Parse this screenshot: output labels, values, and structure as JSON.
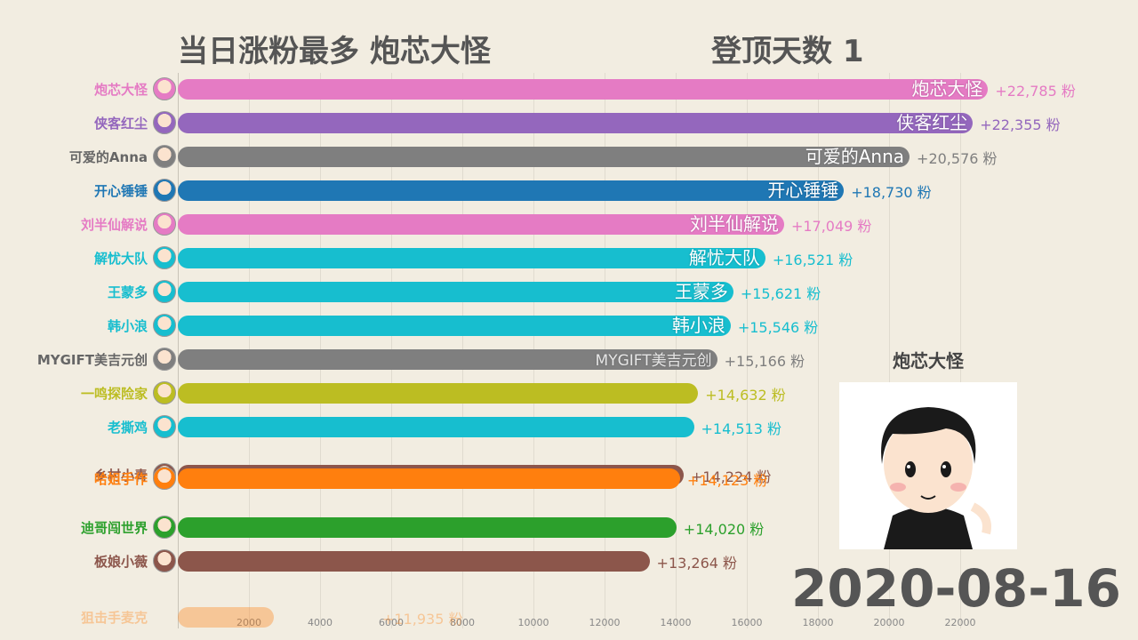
{
  "header": {
    "title": "当日涨粉最多  炮芯大怪",
    "days_label": "登顶天数   1"
  },
  "leader": {
    "name": "炮芯大怪",
    "avatar_icon": "cartoon-boy-avatar-icon"
  },
  "date": "2020-08-16",
  "chart_data": {
    "type": "bar",
    "orientation": "horizontal",
    "title": "",
    "xlabel": "",
    "ylabel": "",
    "xlim": [
      0,
      25000
    ],
    "x_ticks": [
      "2000",
      "4000",
      "6000",
      "8000",
      "10000",
      "12000",
      "14000",
      "16000",
      "18000",
      "20000",
      "22000"
    ],
    "value_suffix": "粉",
    "grid": true,
    "items": [
      {
        "name": "炮芯大怪",
        "value": 22785,
        "value_text": "+22,785 粉",
        "color": "#e57bc4",
        "inner_label": "炮芯大怪"
      },
      {
        "name": "侠客红尘",
        "value": 22355,
        "value_text": "+22,355 粉",
        "color": "#9467bd",
        "inner_label": "侠客红尘"
      },
      {
        "name": "可爱的Anna",
        "value": 20576,
        "value_text": "+20,576 粉",
        "color": "#7f7f7f",
        "inner_label": "可爱的Anna"
      },
      {
        "name": "开心锤锤",
        "value": 18730,
        "value_text": "+18,730 粉",
        "color": "#1f77b4",
        "inner_label": "开心锤锤"
      },
      {
        "name": "刘半仙解说",
        "value": 17049,
        "value_text": "+17,049 粉",
        "color": "#e57bc4",
        "inner_label": "刘半仙解说"
      },
      {
        "name": "解忧大队",
        "value": 16521,
        "value_text": "+16,521 粉",
        "color": "#17becf",
        "inner_label": "解忧大队"
      },
      {
        "name": "王蒙多",
        "value": 15621,
        "value_text": "+15,621 粉",
        "color": "#17becf",
        "inner_label": "王蒙多"
      },
      {
        "name": "韩小浪",
        "value": 15546,
        "value_text": "+15,546 粉",
        "color": "#17becf",
        "inner_label": "韩小浪"
      },
      {
        "name": "MYGIFT美吉元创",
        "value": 15166,
        "value_text": "+15,166 粉",
        "color": "#7f7f7f",
        "inner_label": "MYGIFT美吉元创"
      },
      {
        "name": "一鸣探险家",
        "value": 14632,
        "value_text": "+14,632 粉",
        "color": "#bcbd22",
        "inner_label": ""
      },
      {
        "name": "老撕鸡",
        "value": 14513,
        "value_text": "+14,513 粉",
        "color": "#17becf",
        "inner_label": ""
      },
      {
        "name": "乡村小青",
        "value": 14224,
        "value_text": "+14,224 粉",
        "color": "#8c564b",
        "inner_label": ""
      },
      {
        "name": "哈姐手作",
        "value": 14123,
        "value_text": "+14,123 粉",
        "color": "#ff7f0e",
        "inner_label": ""
      },
      {
        "name": "迪哥闯世界",
        "value": 14020,
        "value_text": "+14,020 粉",
        "color": "#2ca02c",
        "inner_label": ""
      },
      {
        "name": "板娘小薇",
        "value": 13264,
        "value_text": "+13,264 粉",
        "color": "#8c564b",
        "inner_label": ""
      },
      {
        "name": "狙击手麦克",
        "value": 11935,
        "value_text": "+11,935 粉",
        "color": "#ff7f0e",
        "inner_label": ""
      }
    ]
  }
}
